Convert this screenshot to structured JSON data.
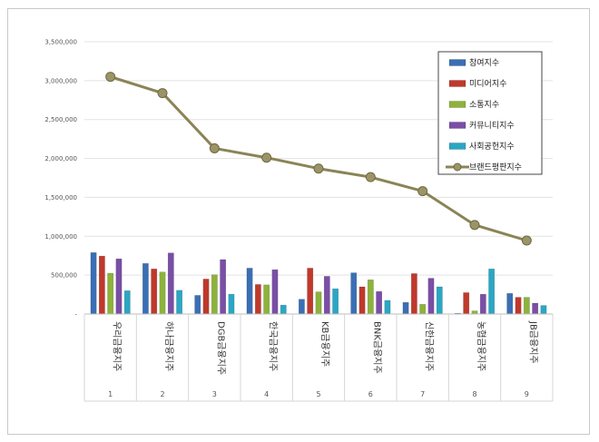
{
  "chart_data": {
    "type": "bar",
    "categories": [
      "1",
      "2",
      "3",
      "4",
      "5",
      "6",
      "7",
      "8",
      "9"
    ],
    "category_names": [
      "우리금융지주",
      "하나금융지주",
      "DGB금융지주",
      "한국금융지주",
      "KB금융지주",
      "BNK금융지주",
      "신한금융지주",
      "농협금융지주",
      "JB금융지주"
    ],
    "series": [
      {
        "name": "참여지수",
        "kind": "bar",
        "color": "#3a6fb5",
        "values": [
          790000,
          650000,
          240000,
          590000,
          190000,
          530000,
          150000,
          10000,
          265000
        ]
      },
      {
        "name": "미디어지수",
        "kind": "bar",
        "color": "#c0392b",
        "values": [
          745000,
          580000,
          450000,
          380000,
          590000,
          350000,
          520000,
          275000,
          215000
        ]
      },
      {
        "name": "소통지수",
        "kind": "bar",
        "color": "#8db33a",
        "values": [
          525000,
          540000,
          505000,
          375000,
          285000,
          440000,
          125000,
          40000,
          215000
        ]
      },
      {
        "name": "커뮤니티지수",
        "kind": "bar",
        "color": "#7a4ea6",
        "values": [
          710000,
          785000,
          700000,
          570000,
          485000,
          290000,
          460000,
          255000,
          140000
        ]
      },
      {
        "name": "사회공헌지수",
        "kind": "bar",
        "color": "#2aa7c4",
        "values": [
          300000,
          305000,
          255000,
          115000,
          325000,
          175000,
          350000,
          580000,
          110000
        ]
      },
      {
        "name": "브랜드평판지수",
        "kind": "line",
        "color": "#8a8456",
        "values": [
          3050000,
          2840000,
          2130000,
          2010000,
          1870000,
          1760000,
          1580000,
          1145000,
          945000
        ]
      }
    ],
    "yticks": [
      "-",
      "500,000",
      "1,000,000",
      "1,500,000",
      "2,000,000",
      "2,500,000",
      "3,000,000",
      "3,500,000"
    ],
    "ylim": [
      0,
      3500000
    ],
    "grid": true,
    "legend_position": "top-right",
    "title": "",
    "xlabel": "",
    "ylabel": ""
  }
}
